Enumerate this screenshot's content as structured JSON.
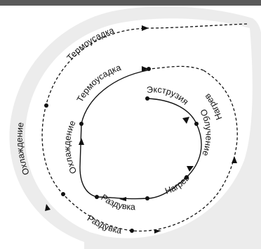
{
  "colors": {
    "background": "#ffffff",
    "band": "#ececec",
    "top_bar": "#5a5a5a",
    "line": "#111111"
  },
  "outer_cycle": {
    "labels": {
      "thermoshrink": "Термоусадка",
      "heating": "Нагрев",
      "blowing": "Раздувка",
      "cooling": "Охлаждение"
    }
  },
  "inner_cycle": {
    "labels": {
      "extrusion": "Экструзия",
      "irradiation": "Облучение",
      "heating": "Нагрев",
      "blowing": "Раздувка",
      "cooling": "Охлаждение",
      "thermoshrink": "Термоусадка"
    }
  }
}
